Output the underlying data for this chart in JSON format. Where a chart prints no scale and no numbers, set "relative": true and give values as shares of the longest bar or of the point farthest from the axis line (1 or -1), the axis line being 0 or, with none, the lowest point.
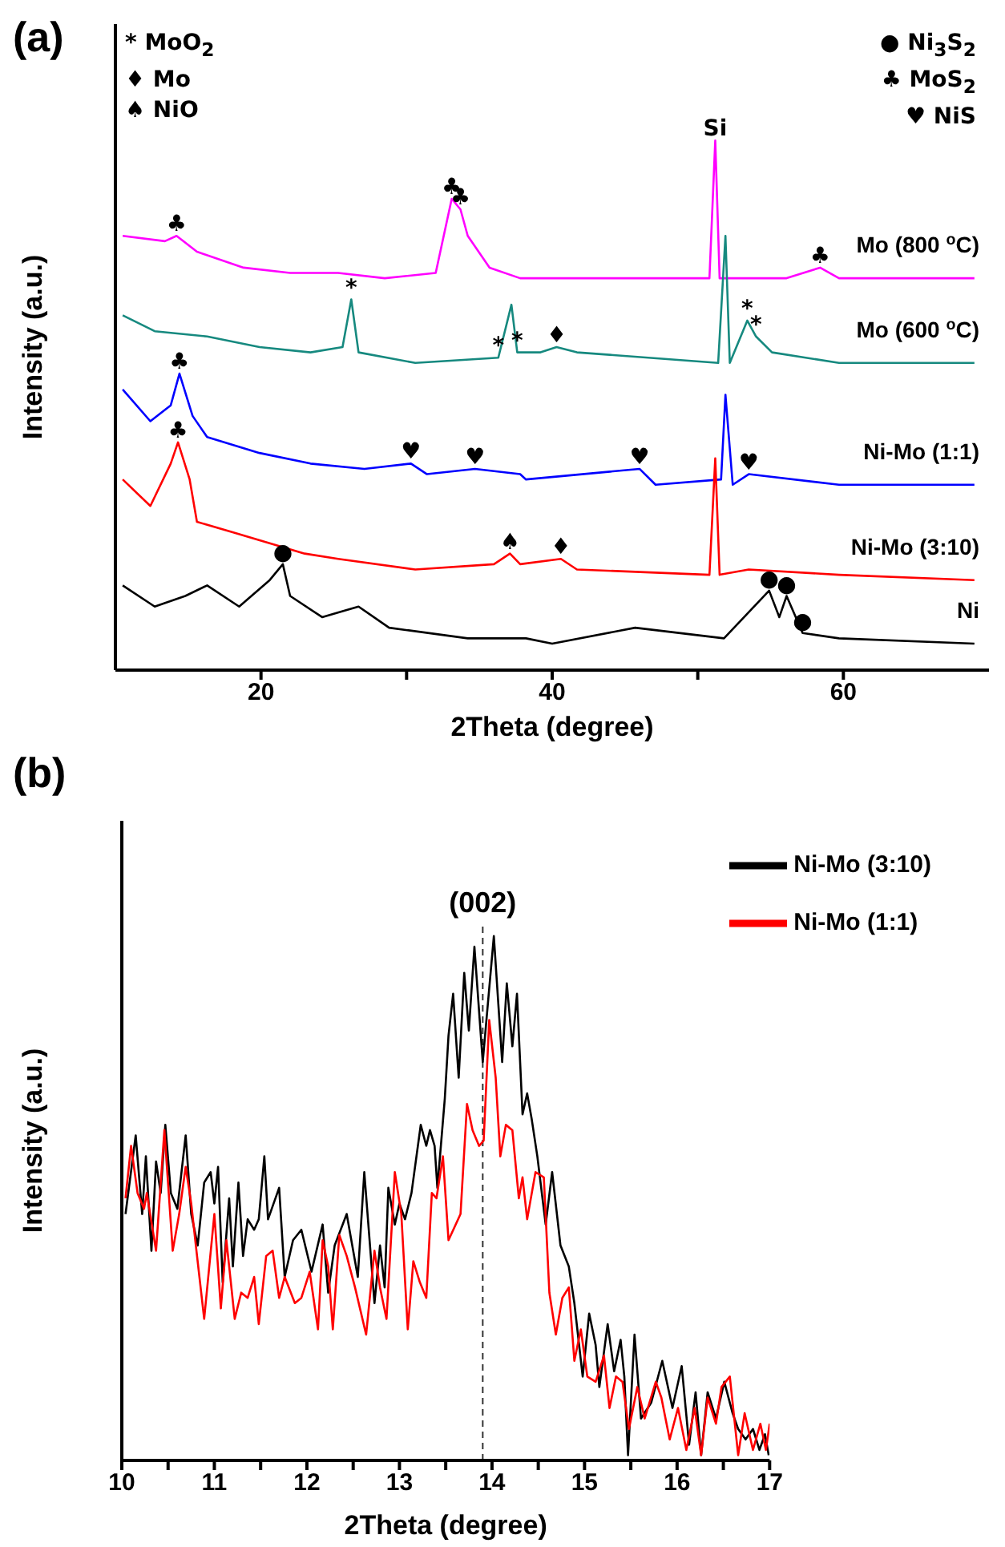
{
  "chart_data": [
    {
      "type": "line",
      "title": "(a)",
      "xlabel": "2Theta (degree)",
      "ylabel": "Intensity (a.u.)",
      "relative": true,
      "xlim": [
        10,
        70
      ],
      "xticks": [
        20,
        {
          "value": 30,
          "label": null
        },
        40,
        {
          "value": 50,
          "label": null
        },
        60
      ],
      "series": [
        {
          "name": "Mo (800 $^{o}$C)",
          "color": "#ff00ff",
          "x": [
            10.5,
            13.4,
            14.2,
            15.6,
            18.8,
            22.0,
            25.3,
            28.5,
            32.0,
            33.1,
            33.7,
            34.2,
            35.7,
            37.8,
            38.2,
            50.8,
            51.2,
            51.5,
            56.1,
            58.4,
            59.7,
            69.0
          ],
          "values": [
            0.82,
            0.81,
            0.82,
            0.79,
            0.76,
            0.75,
            0.75,
            0.74,
            0.75,
            0.89,
            0.87,
            0.82,
            0.76,
            0.74,
            0.74,
            0.74,
            1.0,
            0.74,
            0.74,
            0.76,
            0.74,
            0.74
          ]
        },
        {
          "name": "Mo (600 $^{o}$C)",
          "color": "#16897f",
          "x": [
            10.5,
            12.7,
            16.3,
            19.9,
            23.4,
            25.6,
            26.2,
            26.7,
            30.6,
            36.3,
            37.2,
            37.6,
            39.2,
            40.3,
            41.7,
            51.4,
            51.9,
            52.2,
            53.4,
            54.0,
            55.1,
            59.7,
            69.0
          ],
          "values": [
            0.67,
            0.64,
            0.63,
            0.61,
            0.6,
            0.61,
            0.7,
            0.6,
            0.58,
            0.59,
            0.69,
            0.6,
            0.6,
            0.61,
            0.6,
            0.58,
            0.82,
            0.58,
            0.66,
            0.63,
            0.6,
            0.58,
            0.58
          ]
        },
        {
          "name": "Ni-Mo (1:1)",
          "color": "#0000ff",
          "x": [
            10.5,
            12.4,
            13.8,
            14.4,
            15.3,
            16.3,
            19.9,
            23.4,
            27.1,
            30.3,
            31.4,
            34.7,
            37.8,
            38.2,
            46.0,
            47.1,
            51.6,
            51.9,
            52.4,
            53.5,
            59.7,
            69.0
          ],
          "values": [
            0.53,
            0.47,
            0.5,
            0.56,
            0.48,
            0.44,
            0.41,
            0.39,
            0.38,
            0.39,
            0.37,
            0.38,
            0.37,
            0.36,
            0.38,
            0.35,
            0.36,
            0.52,
            0.35,
            0.37,
            0.35,
            0.35
          ]
        },
        {
          "name": "Ni-Mo (3:10)",
          "color": "#ff0000",
          "x": [
            10.5,
            12.4,
            13.8,
            14.3,
            15.1,
            15.6,
            18.1,
            23.0,
            25.3,
            30.6,
            36.0,
            37.1,
            37.8,
            40.6,
            41.7,
            50.8,
            51.2,
            51.5,
            53.5,
            59.7,
            69.0
          ],
          "values": [
            0.36,
            0.31,
            0.39,
            0.43,
            0.36,
            0.28,
            0.26,
            0.22,
            0.21,
            0.19,
            0.2,
            0.22,
            0.2,
            0.21,
            0.19,
            0.18,
            0.4,
            0.18,
            0.19,
            0.18,
            0.17
          ]
        },
        {
          "name": "Ni",
          "color": "#000000",
          "x": [
            10.5,
            12.7,
            14.8,
            16.3,
            18.5,
            20.6,
            21.5,
            22.0,
            24.2,
            26.7,
            28.8,
            34.2,
            38.2,
            40.0,
            45.7,
            51.8,
            54.9,
            55.6,
            56.1,
            57.2,
            59.7,
            69.0
          ],
          "values": [
            0.16,
            0.12,
            0.14,
            0.16,
            0.12,
            0.17,
            0.2,
            0.14,
            0.1,
            0.12,
            0.08,
            0.06,
            0.06,
            0.05,
            0.08,
            0.06,
            0.15,
            0.1,
            0.14,
            0.07,
            0.06,
            0.05
          ]
        }
      ],
      "annotations": [
        "* MoO$_{2}$",
        "♦ Mo",
        "♠ NiO",
        "● Ni$_{3}$S$_{2}$",
        "♣ MoS$_{2}$",
        "♥ NiS",
        {
          "text": "♣",
          "x": 14.2,
          "y": 0.82
        },
        {
          "text": "♣",
          "x": 33.1,
          "y": 0.89
        },
        {
          "text": "♣",
          "x": 33.7,
          "y": 0.87
        },
        {
          "text": "Si",
          "x": 51.2,
          "y": 1.0
        },
        {
          "text": "♣",
          "x": 58.4,
          "y": 0.76
        },
        {
          "text": "*",
          "x": 26.2,
          "y": 0.7
        },
        {
          "text": "*",
          "x": 36.3,
          "y": 0.59
        },
        {
          "text": "*",
          "x": 37.6,
          "y": 0.6
        },
        {
          "text": "♦",
          "x": 40.3,
          "y": 0.61
        },
        {
          "text": "*",
          "x": 53.4,
          "y": 0.66
        },
        {
          "text": "*",
          "x": 54.0,
          "y": 0.63
        },
        {
          "text": "♣",
          "x": 14.4,
          "y": 0.56
        },
        {
          "text": "♥",
          "x": 30.3,
          "y": 0.39
        },
        {
          "text": "♥",
          "x": 34.7,
          "y": 0.38
        },
        {
          "text": "♥",
          "x": 46.0,
          "y": 0.38
        },
        {
          "text": "♥",
          "x": 53.5,
          "y": 0.37
        },
        {
          "text": "♣",
          "x": 14.3,
          "y": 0.43
        },
        {
          "text": "♠",
          "x": 37.1,
          "y": 0.22
        },
        {
          "text": "♦",
          "x": 40.6,
          "y": 0.21
        },
        {
          "text": "●",
          "x": 21.5,
          "y": 0.2
        },
        {
          "text": "●",
          "x": 54.9,
          "y": 0.15
        },
        {
          "text": "●",
          "x": 56.1,
          "y": 0.14
        },
        {
          "text": "●",
          "x": 57.2,
          "y": 0.07
        }
      ]
    },
    {
      "type": "line",
      "title": "(b)",
      "xlabel": "2Theta (degree)",
      "ylabel": "Intensity (a.u.)",
      "relative": true,
      "legend": "top right",
      "xlim": [
        10,
        17
      ],
      "xticks": [
        10,
        {
          "value": 10.5,
          "label": null
        },
        11,
        {
          "value": 11.5,
          "label": null
        },
        12,
        {
          "value": 12.5,
          "label": null
        },
        13,
        {
          "value": 13.5,
          "label": null
        },
        14,
        {
          "value": 14.5,
          "label": null
        },
        15,
        {
          "value": 15.5,
          "label": null
        },
        16,
        {
          "value": 16.5,
          "label": null
        },
        17
      ],
      "ref_lines": [
        {
          "axis": "x",
          "value": 13.9,
          "line_style": "dashed",
          "color": "#333333"
        }
      ],
      "annotations": [
        "(002)"
      ],
      "series": [
        {
          "name": "Ni-Mo (3:10)",
          "color": "#000000",
          "x": [
            10.04,
            10.15,
            10.22,
            10.26,
            10.32,
            10.37,
            10.42,
            10.47,
            10.53,
            10.6,
            10.69,
            10.75,
            10.82,
            10.89,
            10.96,
            11.0,
            11.04,
            11.09,
            11.16,
            11.2,
            11.26,
            11.31,
            11.36,
            11.43,
            11.48,
            11.54,
            11.58,
            11.7,
            11.76,
            11.85,
            11.94,
            12.05,
            12.17,
            12.23,
            12.3,
            12.43,
            12.55,
            12.62,
            12.73,
            12.79,
            12.84,
            12.88,
            12.95,
            13.0,
            13.06,
            13.13,
            13.23,
            13.29,
            13.33,
            13.38,
            13.41,
            13.49,
            13.53,
            13.58,
            13.64,
            13.7,
            13.75,
            13.81,
            13.9,
            14.02,
            14.11,
            14.16,
            14.22,
            14.27,
            14.33,
            14.38,
            14.43,
            14.49,
            14.58,
            14.65,
            14.74,
            14.83,
            14.89,
            14.98,
            15.05,
            15.12,
            15.16,
            15.25,
            15.32,
            15.39,
            15.43,
            15.47,
            15.54,
            15.61,
            15.72,
            15.84,
            15.95,
            16.05,
            16.13,
            16.2,
            16.26,
            16.33,
            16.42,
            16.51,
            16.6,
            16.66,
            16.74,
            16.82,
            16.89,
            16.95,
            16.99
          ],
          "values": [
            0.47,
            0.62,
            0.47,
            0.58,
            0.4,
            0.57,
            0.51,
            0.64,
            0.51,
            0.48,
            0.62,
            0.47,
            0.41,
            0.53,
            0.55,
            0.49,
            0.56,
            0.34,
            0.5,
            0.37,
            0.53,
            0.39,
            0.46,
            0.44,
            0.46,
            0.58,
            0.46,
            0.52,
            0.35,
            0.42,
            0.44,
            0.36,
            0.45,
            0.32,
            0.41,
            0.47,
            0.35,
            0.55,
            0.3,
            0.41,
            0.33,
            0.52,
            0.45,
            0.49,
            0.46,
            0.51,
            0.64,
            0.6,
            0.63,
            0.6,
            0.52,
            0.69,
            0.81,
            0.89,
            0.73,
            0.93,
            0.82,
            0.98,
            0.76,
            1.0,
            0.76,
            0.91,
            0.79,
            0.89,
            0.66,
            0.7,
            0.65,
            0.58,
            0.45,
            0.55,
            0.41,
            0.37,
            0.3,
            0.16,
            0.28,
            0.22,
            0.14,
            0.26,
            0.17,
            0.23,
            0.16,
            0.01,
            0.24,
            0.08,
            0.11,
            0.19,
            0.1,
            0.18,
            0.03,
            0.13,
            0.01,
            0.13,
            0.08,
            0.15,
            0.09,
            0.06,
            0.04,
            0.06,
            0.02,
            0.05,
            0.01
          ]
        },
        {
          "name": "Ni-Mo (1:1)",
          "color": "#ff0000",
          "x": [
            10.04,
            10.1,
            10.17,
            10.24,
            10.27,
            10.37,
            10.46,
            10.55,
            10.62,
            10.69,
            10.75,
            10.8,
            10.89,
            11.0,
            11.07,
            11.13,
            11.22,
            11.29,
            11.36,
            11.43,
            11.48,
            11.56,
            11.63,
            11.7,
            11.76,
            11.87,
            11.94,
            12.03,
            12.12,
            12.17,
            12.23,
            12.28,
            12.35,
            12.43,
            12.52,
            12.64,
            12.73,
            12.79,
            12.86,
            12.95,
            13.02,
            13.09,
            13.15,
            13.22,
            13.29,
            13.35,
            13.4,
            13.47,
            13.53,
            13.66,
            13.73,
            13.79,
            13.86,
            13.91,
            13.97,
            14.04,
            14.09,
            14.15,
            14.22,
            14.29,
            14.33,
            14.38,
            14.47,
            14.56,
            14.62,
            14.69,
            14.76,
            14.83,
            14.89,
            14.96,
            15.03,
            15.12,
            15.21,
            15.27,
            15.34,
            15.41,
            15.48,
            15.57,
            15.65,
            15.77,
            15.83,
            15.92,
            16.01,
            16.1,
            16.19,
            16.26,
            16.33,
            16.42,
            16.48,
            16.57,
            16.66,
            16.73,
            16.82,
            16.9,
            16.96,
            17.0
          ],
          "values": [
            0.5,
            0.6,
            0.51,
            0.48,
            0.51,
            0.4,
            0.63,
            0.4,
            0.47,
            0.56,
            0.49,
            0.41,
            0.27,
            0.47,
            0.29,
            0.42,
            0.27,
            0.32,
            0.31,
            0.35,
            0.26,
            0.39,
            0.4,
            0.31,
            0.35,
            0.3,
            0.31,
            0.36,
            0.25,
            0.42,
            0.37,
            0.25,
            0.43,
            0.39,
            0.33,
            0.24,
            0.4,
            0.33,
            0.27,
            0.55,
            0.47,
            0.25,
            0.38,
            0.34,
            0.31,
            0.51,
            0.5,
            0.58,
            0.42,
            0.47,
            0.68,
            0.63,
            0.6,
            0.61,
            0.84,
            0.73,
            0.58,
            0.64,
            0.63,
            0.5,
            0.54,
            0.46,
            0.55,
            0.54,
            0.32,
            0.24,
            0.31,
            0.33,
            0.19,
            0.25,
            0.16,
            0.15,
            0.2,
            0.1,
            0.16,
            0.15,
            0.06,
            0.14,
            0.08,
            0.15,
            0.12,
            0.04,
            0.1,
            0.02,
            0.1,
            0.01,
            0.12,
            0.07,
            0.14,
            0.16,
            0.01,
            0.09,
            0.02,
            0.07,
            0.02,
            0.07
          ]
        }
      ]
    }
  ]
}
